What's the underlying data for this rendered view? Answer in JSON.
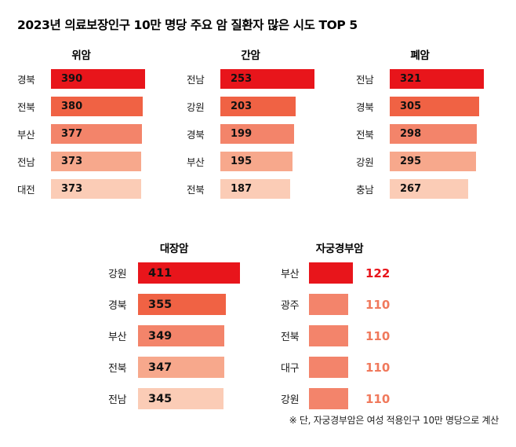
{
  "page": {
    "title": "2023년 의료보장인구 10만 명당 주요 암 질환자 많은 시도 TOP 5",
    "footnote": "※ 단, 자궁경부암은 여성 적용인구 10만 명당으로 계산"
  },
  "palette": {
    "rank1": "#e8151b",
    "rank2": "#f06244",
    "rank3": "#f3846a",
    "rank4": "#f7a88c",
    "rank5": "#fbccb6",
    "value_text_inside": "#111111"
  },
  "chart_data": [
    {
      "type": "bar",
      "orientation": "horizontal",
      "title": "위암",
      "categories": [
        "경북",
        "전북",
        "부산",
        "전남",
        "대전"
      ],
      "values": [
        390,
        380,
        377,
        373,
        373
      ],
      "value_position": "inside",
      "bar_colors": [
        "#e8151b",
        "#f06244",
        "#f3846a",
        "#f7a88c",
        "#fbccb6"
      ],
      "value_text_color": "#111111",
      "bar_scale": "relative-to-max"
    },
    {
      "type": "bar",
      "orientation": "horizontal",
      "title": "간암",
      "categories": [
        "전남",
        "강원",
        "경북",
        "부산",
        "전북"
      ],
      "values": [
        253,
        203,
        199,
        195,
        187
      ],
      "value_position": "inside",
      "bar_colors": [
        "#e8151b",
        "#f06244",
        "#f3846a",
        "#f7a88c",
        "#fbccb6"
      ],
      "value_text_color": "#111111",
      "bar_scale": "relative-to-max"
    },
    {
      "type": "bar",
      "orientation": "horizontal",
      "title": "폐암",
      "categories": [
        "전남",
        "경북",
        "전북",
        "강원",
        "충남"
      ],
      "values": [
        321,
        305,
        298,
        295,
        267
      ],
      "value_position": "inside",
      "bar_colors": [
        "#e8151b",
        "#f06244",
        "#f3846a",
        "#f7a88c",
        "#fbccb6"
      ],
      "value_text_color": "#111111",
      "bar_scale": "relative-to-max"
    },
    {
      "type": "bar",
      "orientation": "horizontal",
      "title": "대장암",
      "categories": [
        "강원",
        "경북",
        "부산",
        "전북",
        "전남"
      ],
      "values": [
        411,
        355,
        349,
        347,
        345
      ],
      "value_position": "inside",
      "bar_colors": [
        "#e8151b",
        "#f06244",
        "#f3846a",
        "#f7a88c",
        "#fbccb6"
      ],
      "value_text_color": "#111111",
      "bar_scale": "relative-to-max"
    },
    {
      "type": "bar",
      "orientation": "horizontal",
      "title": "자궁경부암",
      "categories": [
        "부산",
        "광주",
        "전북",
        "대구",
        "강원"
      ],
      "values": [
        122,
        110,
        110,
        110,
        110
      ],
      "value_position": "outside",
      "bar_colors": [
        "#e8151b",
        "#f3846b",
        "#f3846b",
        "#f3846b",
        "#f3846b"
      ],
      "value_text_colors": [
        "#e8151b",
        "#f0795c",
        "#f0795c",
        "#f0795c",
        "#f0795c"
      ],
      "bar_scale": "relative-to-max"
    }
  ]
}
